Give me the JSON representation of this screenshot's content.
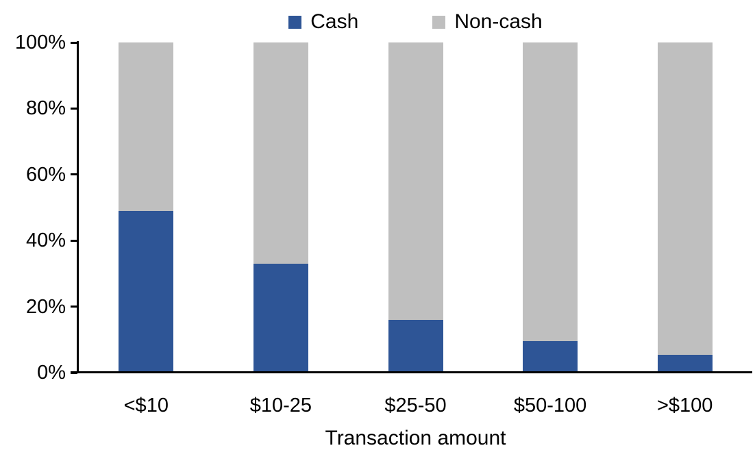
{
  "chart_data": {
    "type": "bar",
    "stacked": true,
    "percent_stacked": true,
    "title": "",
    "xlabel": "Transaction amount",
    "ylabel": "",
    "categories": [
      "<$10",
      "$10-25",
      "$25-50",
      "$50-100",
      ">$100"
    ],
    "series": [
      {
        "name": "Cash",
        "color": "#2E5596",
        "values": [
          49,
          33,
          16,
          9.5,
          5.5
        ]
      },
      {
        "name": "Non-cash",
        "color": "#BFBFBF",
        "values": [
          51,
          67,
          84,
          90.5,
          94.5
        ]
      }
    ],
    "ylim": [
      0,
      100
    ],
    "ytick_step": 20,
    "ytick_labels": [
      "0%",
      "20%",
      "40%",
      "60%",
      "80%",
      "100%"
    ],
    "legend_position": "top-center",
    "grid": false,
    "axis_color": "#000000",
    "text_color": "#000000",
    "background_color": "#ffffff"
  }
}
